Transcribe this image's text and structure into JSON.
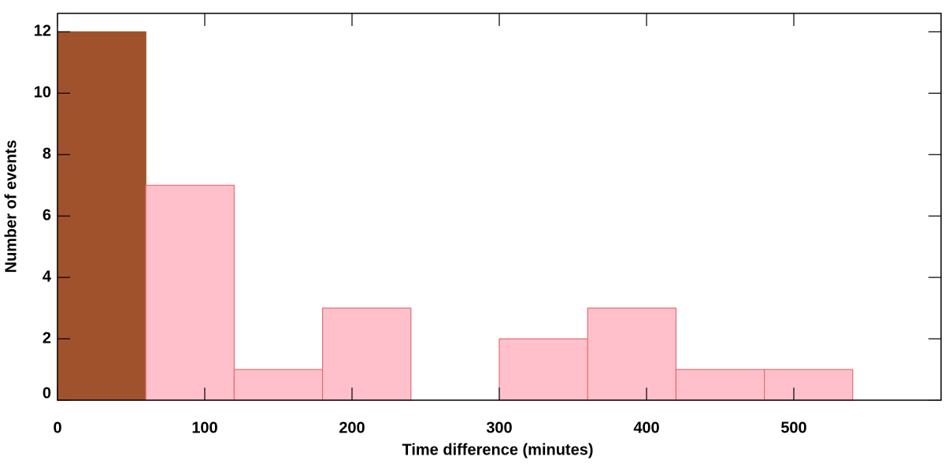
{
  "chart_data": {
    "type": "histogram",
    "x_label": "Time difference (minutes)",
    "y_label": "Number of events",
    "bins": [
      0,
      60,
      120,
      180,
      240,
      300,
      360,
      420,
      480,
      540
    ],
    "counts": [
      12,
      7,
      1,
      3,
      0,
      2,
      3,
      1,
      1
    ],
    "colors": [
      "#a0522d",
      "#ffc0cb",
      "#ffc0cb",
      "#ffc0cb",
      "#ffc0cb",
      "#ffc0cb",
      "#ffc0cb",
      "#ffc0cb",
      "#ffc0cb"
    ],
    "edge_colors": [
      "#a0522d",
      "#e07070",
      "#e07070",
      "#e07070",
      "#e07070",
      "#e07070",
      "#e07070",
      "#e07070",
      "#e07070"
    ],
    "xlim": [
      0,
      600
    ],
    "ylim": [
      0,
      12.6
    ],
    "xticks": [
      0,
      100,
      200,
      300,
      400,
      500
    ],
    "yticks": [
      0,
      2,
      4,
      6,
      8,
      10,
      12
    ]
  }
}
